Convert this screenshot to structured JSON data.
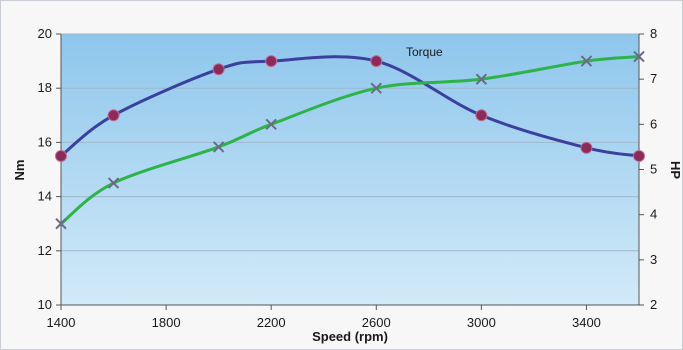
{
  "chart_data": {
    "type": "line",
    "xlabel": "Speed (rpm)",
    "ylabel_left": "Nm",
    "ylabel_right": "HP",
    "annotation": "Torque",
    "xlim": [
      1400,
      3600
    ],
    "ylim_left": [
      10,
      20
    ],
    "ylim_right": [
      2,
      8
    ],
    "x_ticks": [
      1400,
      1800,
      2200,
      2600,
      3000,
      3400
    ],
    "y_ticks_left": [
      10,
      12,
      14,
      16,
      18,
      20
    ],
    "y_ticks_right": [
      2,
      3,
      4,
      5,
      6,
      7,
      8
    ],
    "grid": "horizontal",
    "series": [
      {
        "axis": "left",
        "color": "#3b3f9e",
        "marker": "circle",
        "marker_color": "#8a2b5a",
        "x": [
          1400,
          1600,
          2000,
          2200,
          2600,
          3000,
          3400,
          3600
        ],
        "y": [
          15.5,
          17.0,
          18.7,
          19.0,
          19.0,
          17.0,
          15.8,
          15.5
        ]
      },
      {
        "axis": "right",
        "color": "#2db34a",
        "marker": "x",
        "marker_color": "#6a6a86",
        "x": [
          1400,
          1600,
          2000,
          2200,
          2600,
          3000,
          3400,
          3600
        ],
        "y": [
          3.8,
          4.7,
          5.5,
          6.0,
          6.8,
          7.0,
          7.4,
          7.5
        ]
      }
    ]
  },
  "colors": {
    "plot_top": "#8ec6ec",
    "plot_bottom": "#d2eaf8",
    "grid": "#9fb8cc",
    "axis": "#555555"
  }
}
